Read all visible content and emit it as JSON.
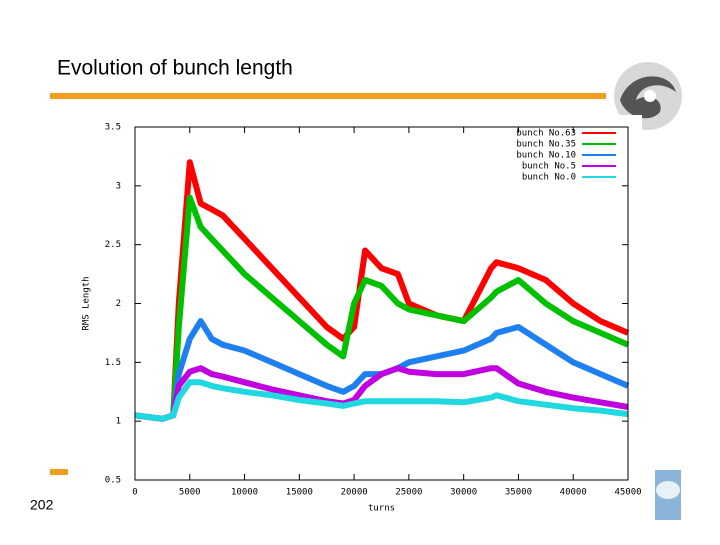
{
  "title": "Evolution of bunch length",
  "page_number": "202",
  "chart_data": {
    "type": "line",
    "xlabel": "turns",
    "ylabel": "RMS Length",
    "x": [
      0,
      2500,
      3500,
      4000,
      5000,
      6000,
      7000,
      8000,
      10000,
      12500,
      15000,
      17500,
      19000,
      20000,
      21000,
      22500,
      24000,
      25000,
      27500,
      30000,
      32500,
      33000,
      35000,
      37500,
      40000,
      42500,
      45000
    ],
    "series": [
      {
        "name": "bunch No.63",
        "color": "#ff0000",
        "values": [
          1.05,
          1.02,
          1.05,
          2.0,
          3.2,
          2.85,
          2.8,
          2.75,
          2.55,
          2.3,
          2.05,
          1.8,
          1.7,
          1.8,
          2.45,
          2.3,
          2.25,
          2.0,
          1.9,
          1.85,
          2.3,
          2.35,
          2.3,
          2.2,
          2.0,
          1.85,
          1.75
        ]
      },
      {
        "name": "bunch No.35",
        "color": "#00c000",
        "values": [
          1.05,
          1.02,
          1.05,
          1.8,
          2.9,
          2.65,
          2.55,
          2.45,
          2.25,
          2.05,
          1.85,
          1.65,
          1.55,
          2.0,
          2.2,
          2.15,
          2.0,
          1.95,
          1.9,
          1.85,
          2.05,
          2.1,
          2.2,
          2.0,
          1.85,
          1.75,
          1.65
        ]
      },
      {
        "name": "bunch No.10",
        "color": "#1e7ff0",
        "values": [
          1.05,
          1.02,
          1.05,
          1.4,
          1.7,
          1.85,
          1.7,
          1.65,
          1.6,
          1.5,
          1.4,
          1.3,
          1.25,
          1.3,
          1.4,
          1.4,
          1.45,
          1.5,
          1.55,
          1.6,
          1.7,
          1.75,
          1.8,
          1.65,
          1.5,
          1.4,
          1.3
        ]
      },
      {
        "name": "bunch No.5",
        "color": "#c000e0",
        "values": [
          1.05,
          1.02,
          1.05,
          1.3,
          1.42,
          1.45,
          1.4,
          1.38,
          1.33,
          1.27,
          1.22,
          1.17,
          1.15,
          1.18,
          1.3,
          1.4,
          1.45,
          1.42,
          1.4,
          1.4,
          1.45,
          1.45,
          1.32,
          1.25,
          1.2,
          1.16,
          1.12
        ]
      },
      {
        "name": "bunch No.0",
        "color": "#20d8e0",
        "values": [
          1.05,
          1.02,
          1.05,
          1.2,
          1.33,
          1.33,
          1.3,
          1.28,
          1.25,
          1.22,
          1.18,
          1.15,
          1.13,
          1.15,
          1.17,
          1.17,
          1.17,
          1.17,
          1.17,
          1.16,
          1.2,
          1.22,
          1.17,
          1.14,
          1.11,
          1.09,
          1.06
        ]
      }
    ],
    "xlim": [
      0,
      45000
    ],
    "ylim": [
      0.5,
      3.5
    ],
    "xticks": [
      0,
      5000,
      10000,
      15000,
      20000,
      25000,
      30000,
      35000,
      40000,
      45000
    ],
    "yticks": [
      0.5,
      1,
      1.5,
      2,
      2.5,
      3,
      3.5
    ],
    "legend": "upper right"
  }
}
